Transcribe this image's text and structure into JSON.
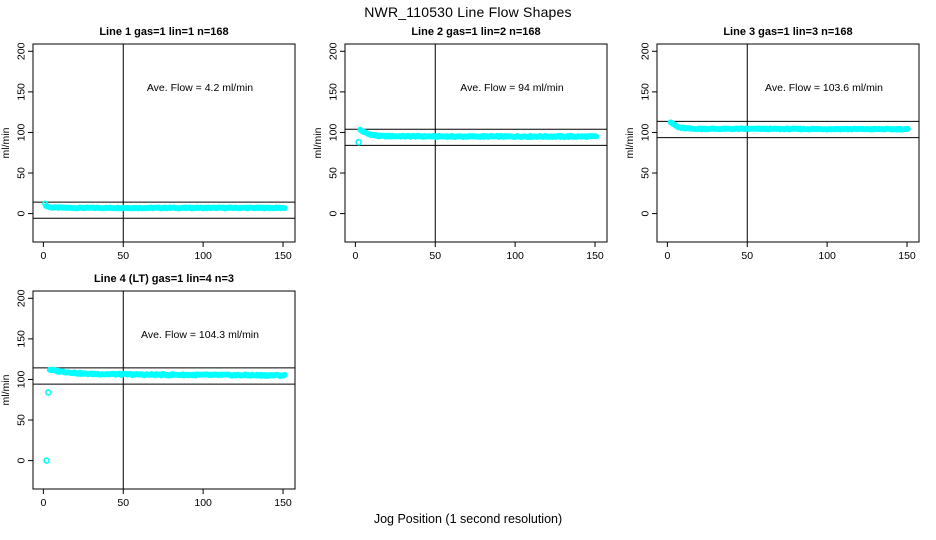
{
  "header": {
    "title": "NWR_110530  Line Flow Shapes"
  },
  "footer": {
    "xlabel": "Jog Position (1 second resolution)"
  },
  "style": {
    "point_color": "#00FFFF",
    "axis_color": "#000000",
    "background": "#FFFFFF"
  },
  "chart_data": [
    {
      "type": "scatter",
      "title": "Line 1 gas=1 lin=1 n=168",
      "ave_label": "Ave. Flow =  4.2  ml/min",
      "ave_flow": 4.2,
      "n": 168,
      "ylabel": "ml/min",
      "xticks": [
        0,
        50,
        100,
        150
      ],
      "yticks": [
        0,
        50,
        100,
        150,
        200
      ],
      "xlim": [
        -6.5,
        157.5
      ],
      "ylim": [
        -35,
        209
      ],
      "grid": false,
      "legend": "none",
      "vline_x": 50,
      "hlines": [
        14.2,
        -5.8
      ],
      "trend": [
        [
          1,
          12
        ],
        [
          2,
          9
        ],
        [
          5,
          7.5
        ],
        [
          20,
          7
        ],
        [
          151,
          7
        ]
      ],
      "outliers": [],
      "x_end": 151,
      "noise": 1.2
    },
    {
      "type": "scatter",
      "title": "Line 2 gas=1 lin=2 n=168",
      "ave_label": "Ave. Flow =  94  ml/min",
      "ave_flow": 94,
      "n": 168,
      "ylabel": "ml/min",
      "xticks": [
        0,
        50,
        100,
        150
      ],
      "yticks": [
        0,
        50,
        100,
        150,
        200
      ],
      "xlim": [
        -6.5,
        157.5
      ],
      "ylim": [
        -35,
        209
      ],
      "grid": false,
      "legend": "none",
      "vline_x": 50,
      "hlines": [
        104,
        84
      ],
      "trend": [
        [
          3,
          103
        ],
        [
          5,
          101
        ],
        [
          8,
          98
        ],
        [
          15,
          95.5
        ],
        [
          60,
          95
        ],
        [
          151,
          95
        ]
      ],
      "outliers": [
        [
          2,
          88
        ]
      ],
      "x_end": 151,
      "noise": 1.5
    },
    {
      "type": "scatter",
      "title": "Line 3 gas=1 lin=3 n=168",
      "ave_label": "Ave. Flow =  103.6  ml/min",
      "ave_flow": 103.6,
      "n": 168,
      "ylabel": "ml/min",
      "xticks": [
        0,
        50,
        100,
        150
      ],
      "yticks": [
        0,
        50,
        100,
        150,
        200
      ],
      "xlim": [
        -6.5,
        157.5
      ],
      "ylim": [
        -35,
        209
      ],
      "grid": false,
      "legend": "none",
      "vline_x": 50,
      "hlines": [
        113.6,
        93.6
      ],
      "trend": [
        [
          2,
          113
        ],
        [
          4,
          110
        ],
        [
          7,
          106
        ],
        [
          15,
          104.5
        ],
        [
          151,
          104
        ]
      ],
      "outliers": [],
      "x_end": 151,
      "noise": 1.2
    },
    {
      "type": "scatter",
      "title": "Line 4 (LT) gas=1 lin=4 n=3",
      "ave_label": "Ave. Flow =  104.3  ml/min",
      "ave_flow": 104.3,
      "n": 3,
      "ylabel": "ml/min",
      "xticks": [
        0,
        50,
        100,
        150
      ],
      "yticks": [
        0,
        50,
        100,
        150,
        200
      ],
      "xlim": [
        -6.5,
        157.5
      ],
      "ylim": [
        -35,
        209
      ],
      "grid": false,
      "legend": "none",
      "vline_x": 50,
      "hlines": [
        114.3,
        94.3
      ],
      "trend": [
        [
          4,
          112
        ],
        [
          8,
          110.5
        ],
        [
          25,
          107
        ],
        [
          60,
          106
        ],
        [
          100,
          105.5
        ],
        [
          151,
          105
        ]
      ],
      "outliers": [
        [
          2,
          0
        ],
        [
          3,
          84
        ]
      ],
      "x_end": 151,
      "noise": 1.8
    }
  ]
}
